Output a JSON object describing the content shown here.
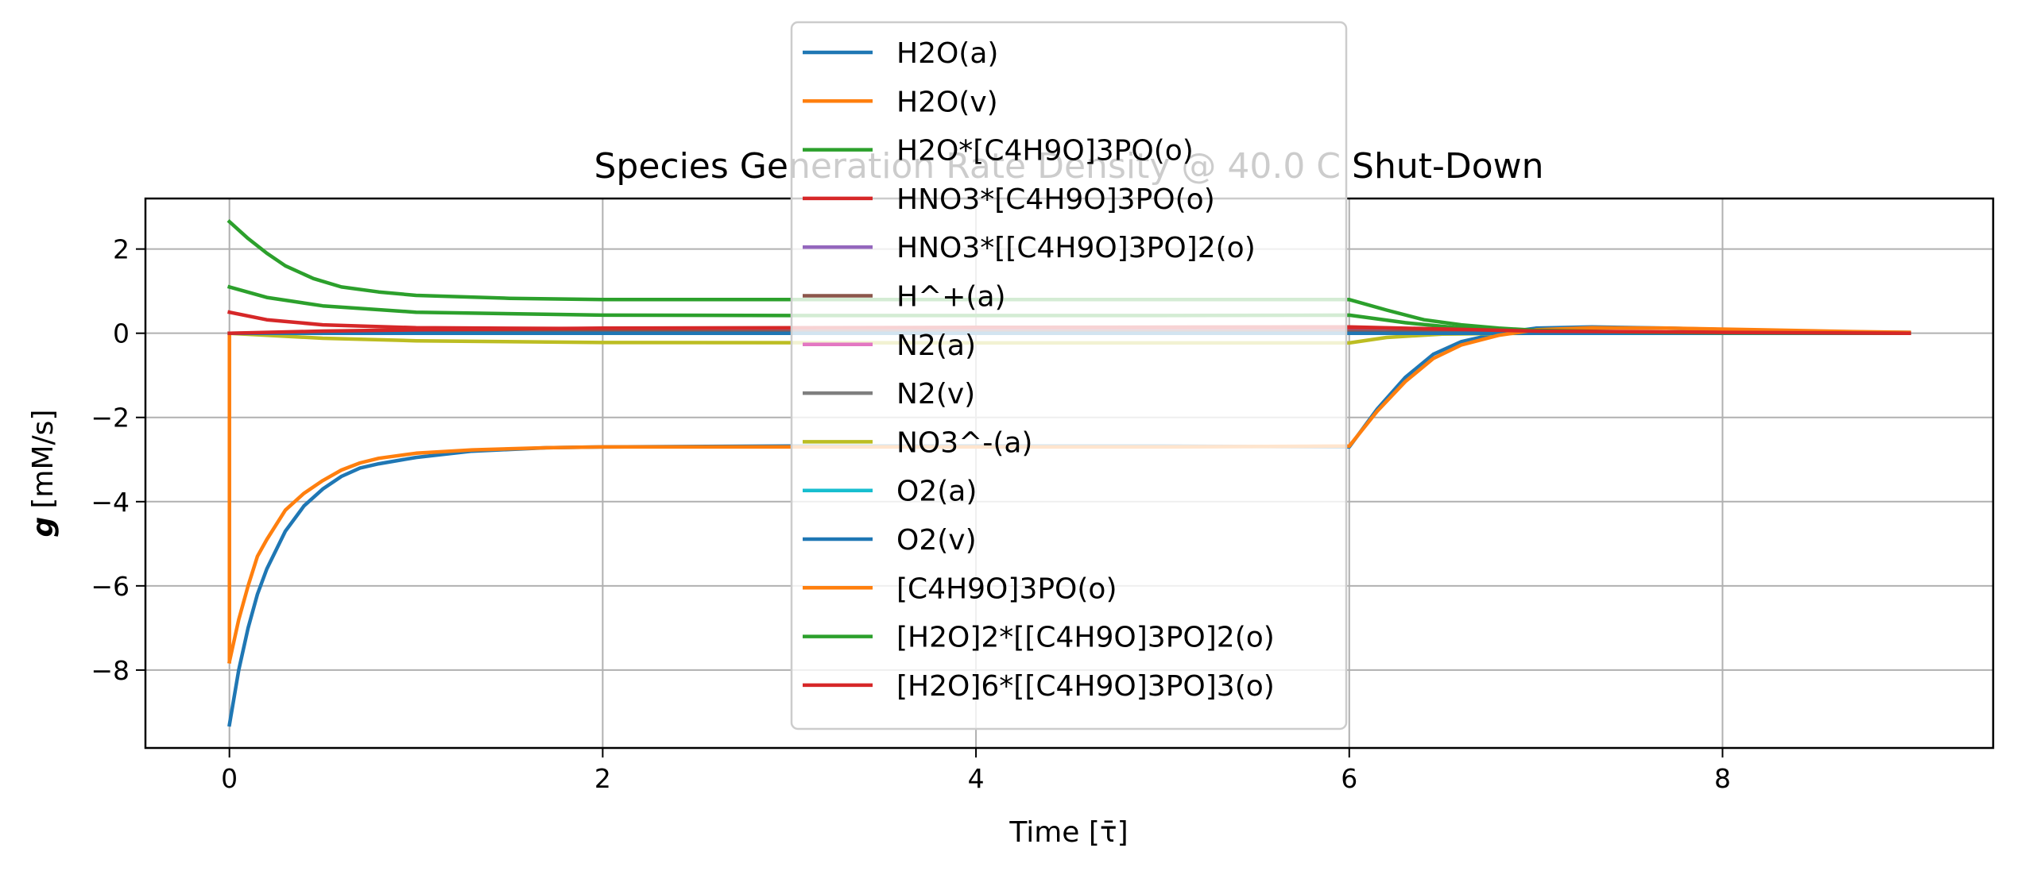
{
  "chart_data": {
    "type": "line",
    "title": "Species Generation Rate Density @ 40.0 C Shut-Down",
    "xlabel": "Time [τ̄]",
    "ylabel_symbol": "g",
    "ylabel_unit": "[mM/s]",
    "xlim": [
      -0.45,
      9.45
    ],
    "ylim": [
      -9.85,
      3.2
    ],
    "xticks": [
      0,
      2,
      4,
      6,
      8
    ],
    "yticks": [
      2,
      0,
      -2,
      -4,
      -6,
      -8
    ],
    "grid": true,
    "legend_position": "upper-center",
    "series": [
      {
        "name": "H2O(a)",
        "color": "#1f77b4",
        "points": [
          [
            0,
            -9.3
          ],
          [
            0.05,
            -8.0
          ],
          [
            0.1,
            -7.0
          ],
          [
            0.15,
            -6.2
          ],
          [
            0.2,
            -5.6
          ],
          [
            0.3,
            -4.7
          ],
          [
            0.4,
            -4.1
          ],
          [
            0.5,
            -3.7
          ],
          [
            0.6,
            -3.4
          ],
          [
            0.7,
            -3.2
          ],
          [
            0.8,
            -3.1
          ],
          [
            1.0,
            -2.95
          ],
          [
            1.3,
            -2.8
          ],
          [
            1.7,
            -2.72
          ],
          [
            2.0,
            -2.7
          ],
          [
            3.0,
            -2.68
          ],
          [
            4.0,
            -2.68
          ],
          [
            5.0,
            -2.68
          ],
          [
            6.0,
            -2.7
          ],
          [
            6.15,
            -1.8
          ],
          [
            6.3,
            -1.05
          ],
          [
            6.45,
            -0.5
          ],
          [
            6.6,
            -0.2
          ],
          [
            6.8,
            0.0
          ],
          [
            7.0,
            0.12
          ],
          [
            7.3,
            0.15
          ],
          [
            7.7,
            0.12
          ],
          [
            8.2,
            0.07
          ],
          [
            8.7,
            0.03
          ],
          [
            9.0,
            0.02
          ]
        ]
      },
      {
        "name": "H2O(v)",
        "color": "#ff7f0e",
        "points": [
          [
            0,
            -7.8
          ],
          [
            0,
            0
          ],
          [
            9.0,
            0
          ]
        ]
      },
      {
        "name": "H2O*[C4H9O]3PO(o)",
        "color": "#2ca02c",
        "points": [
          [
            0,
            1.1
          ],
          [
            0.2,
            0.85
          ],
          [
            0.5,
            0.65
          ],
          [
            1.0,
            0.5
          ],
          [
            2.0,
            0.43
          ],
          [
            3.0,
            0.42
          ],
          [
            4.0,
            0.42
          ],
          [
            5.0,
            0.42
          ],
          [
            6.0,
            0.43
          ],
          [
            6.3,
            0.25
          ],
          [
            6.6,
            0.12
          ],
          [
            7.0,
            0.04
          ],
          [
            8.0,
            0.01
          ],
          [
            9.0,
            0.0
          ]
        ]
      },
      {
        "name": "HNO3*[C4H9O]3PO(o)",
        "color": "#d62728",
        "points": [
          [
            0,
            0.5
          ],
          [
            0.2,
            0.32
          ],
          [
            0.5,
            0.2
          ],
          [
            1.0,
            0.13
          ],
          [
            2.0,
            0.11
          ],
          [
            4.0,
            0.11
          ],
          [
            6.0,
            0.11
          ],
          [
            6.5,
            0.08
          ],
          [
            7.0,
            0.04
          ],
          [
            8.0,
            0.02
          ],
          [
            9.0,
            0.0
          ]
        ]
      },
      {
        "name": "HNO3*[[C4H9O]3PO]2(o)",
        "color": "#9467bd",
        "points": [
          [
            0,
            0.0
          ],
          [
            3.0,
            0.05
          ],
          [
            6.0,
            0.05
          ],
          [
            7.0,
            0.02
          ],
          [
            9.0,
            0.0
          ]
        ]
      },
      {
        "name": "H^+(a)",
        "color": "#8c564b",
        "points": [
          [
            0,
            0.0
          ],
          [
            2.0,
            0.04
          ],
          [
            6.0,
            0.04
          ],
          [
            7.0,
            0.02
          ],
          [
            9.0,
            0.0
          ]
        ]
      },
      {
        "name": "N2(a)",
        "color": "#e377c2",
        "points": [
          [
            0,
            0.0
          ],
          [
            9.0,
            0.0
          ]
        ]
      },
      {
        "name": "N2(v)",
        "color": "#7f7f7f",
        "points": [
          [
            0,
            0.0
          ],
          [
            9.0,
            0.0
          ]
        ]
      },
      {
        "name": "NO3^-(a)",
        "color": "#bcbd22",
        "points": [
          [
            0,
            0.0
          ],
          [
            0.5,
            -0.12
          ],
          [
            1.0,
            -0.18
          ],
          [
            2.0,
            -0.22
          ],
          [
            4.0,
            -0.23
          ],
          [
            6.0,
            -0.23
          ],
          [
            6.2,
            -0.1
          ],
          [
            6.5,
            -0.02
          ],
          [
            7.0,
            0.0
          ],
          [
            9.0,
            0.0
          ]
        ]
      },
      {
        "name": "O2(a)",
        "color": "#17becf",
        "points": [
          [
            0,
            0.0
          ],
          [
            9.0,
            0.0
          ]
        ]
      },
      {
        "name": "O2(v)",
        "color": "#1f77b4",
        "points": [
          [
            0,
            0.0
          ],
          [
            9.0,
            0.0
          ]
        ]
      },
      {
        "name": "[C4H9O]3PO(o)",
        "color": "#ff7f0e",
        "points": [
          [
            0,
            -7.8
          ],
          [
            0.05,
            -6.8
          ],
          [
            0.1,
            -6.0
          ],
          [
            0.15,
            -5.3
          ],
          [
            0.2,
            -4.9
          ],
          [
            0.3,
            -4.2
          ],
          [
            0.4,
            -3.8
          ],
          [
            0.5,
            -3.5
          ],
          [
            0.6,
            -3.25
          ],
          [
            0.7,
            -3.08
          ],
          [
            0.8,
            -2.97
          ],
          [
            1.0,
            -2.85
          ],
          [
            1.3,
            -2.77
          ],
          [
            1.7,
            -2.72
          ],
          [
            2.0,
            -2.7
          ],
          [
            3.0,
            -2.7
          ],
          [
            4.0,
            -2.7
          ],
          [
            5.0,
            -2.7
          ],
          [
            6.0,
            -2.68
          ],
          [
            6.15,
            -1.85
          ],
          [
            6.3,
            -1.15
          ],
          [
            6.45,
            -0.6
          ],
          [
            6.6,
            -0.28
          ],
          [
            6.8,
            -0.05
          ],
          [
            7.0,
            0.08
          ],
          [
            7.3,
            0.13
          ],
          [
            7.7,
            0.12
          ],
          [
            8.2,
            0.08
          ],
          [
            8.7,
            0.04
          ],
          [
            9.0,
            0.02
          ]
        ]
      },
      {
        "name": "[H2O]2*[[C4H9O]3PO]2(o)",
        "color": "#2ca02c",
        "points": [
          [
            0,
            2.65
          ],
          [
            0.1,
            2.25
          ],
          [
            0.2,
            1.9
          ],
          [
            0.3,
            1.6
          ],
          [
            0.45,
            1.3
          ],
          [
            0.6,
            1.1
          ],
          [
            0.8,
            0.98
          ],
          [
            1.0,
            0.9
          ],
          [
            1.5,
            0.83
          ],
          [
            2.0,
            0.8
          ],
          [
            3.0,
            0.8
          ],
          [
            4.0,
            0.8
          ],
          [
            5.0,
            0.8
          ],
          [
            6.0,
            0.8
          ],
          [
            6.2,
            0.55
          ],
          [
            6.4,
            0.32
          ],
          [
            6.6,
            0.2
          ],
          [
            6.8,
            0.12
          ],
          [
            7.0,
            0.07
          ],
          [
            7.5,
            0.03
          ],
          [
            8.0,
            0.01
          ],
          [
            9.0,
            0.0
          ]
        ]
      },
      {
        "name": "[H2O]6*[[C4H9O]3PO]3(o)",
        "color": "#d62728",
        "points": [
          [
            0,
            0.0
          ],
          [
            0.5,
            0.05
          ],
          [
            1.0,
            0.08
          ],
          [
            2.0,
            0.12
          ],
          [
            4.0,
            0.14
          ],
          [
            6.0,
            0.15
          ],
          [
            6.5,
            0.1
          ],
          [
            7.0,
            0.05
          ],
          [
            8.0,
            0.02
          ],
          [
            9.0,
            0.0
          ]
        ]
      }
    ]
  }
}
